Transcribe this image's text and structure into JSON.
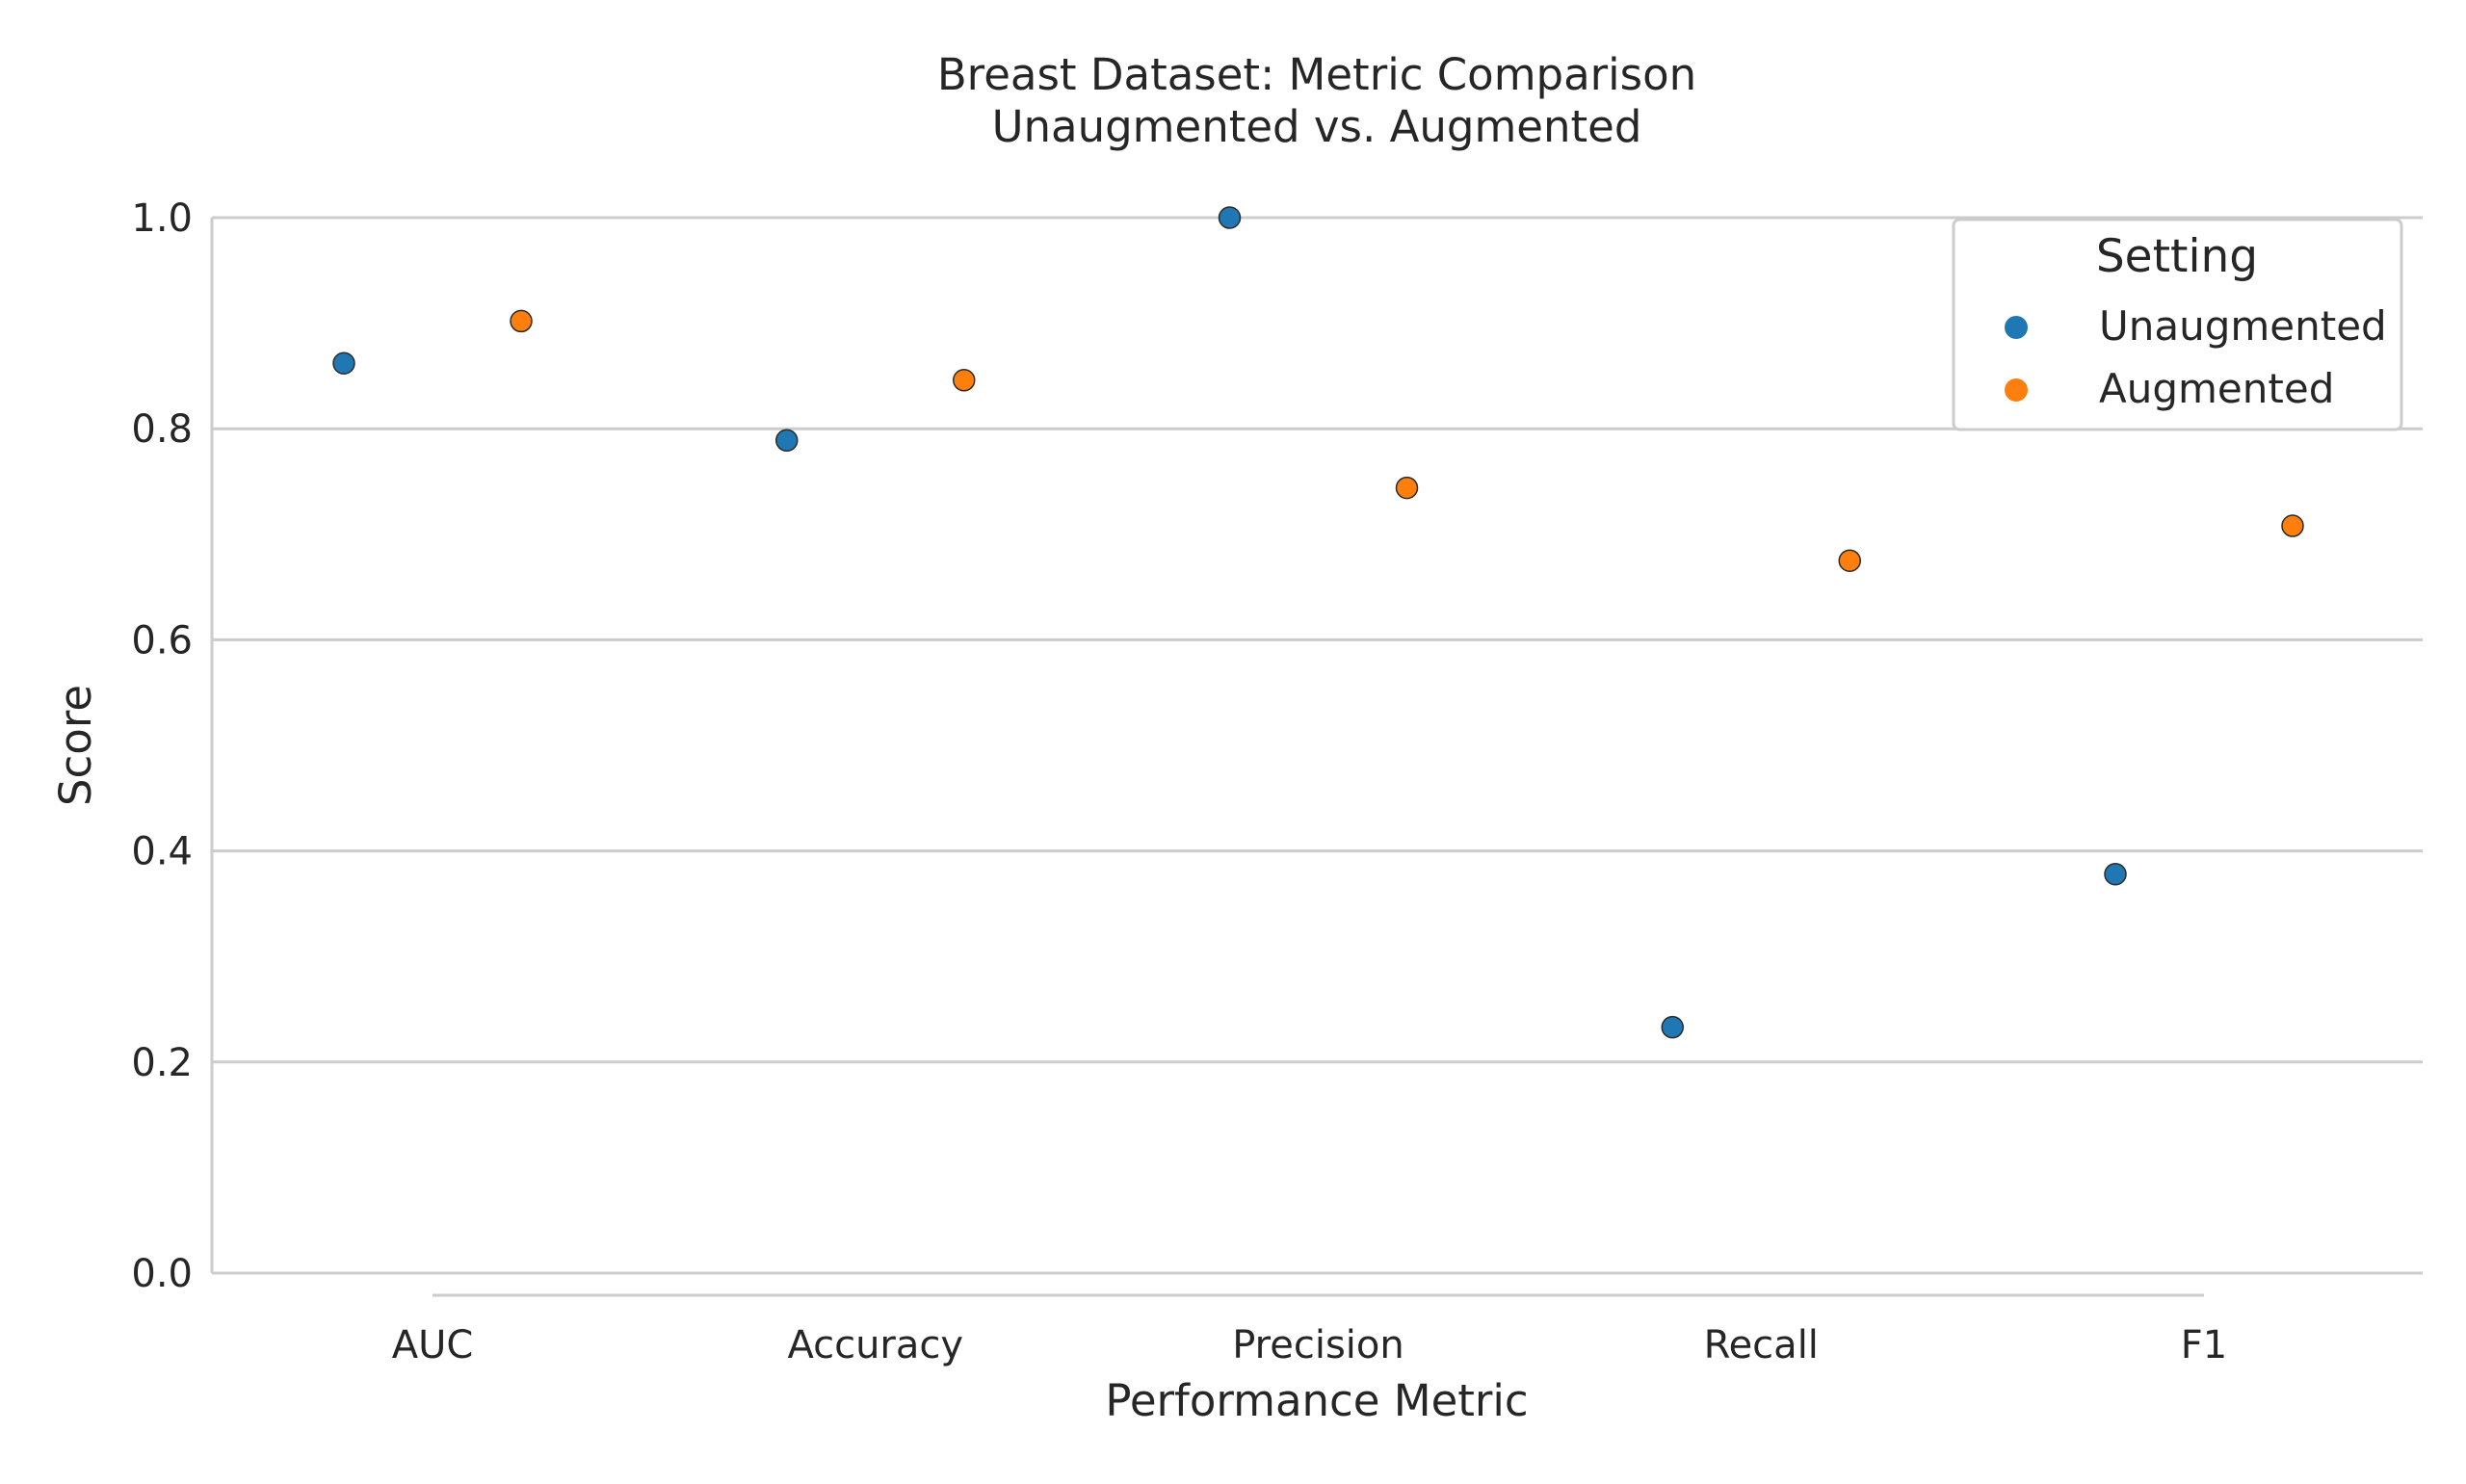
{
  "chart_data": {
    "type": "scatter",
    "title_line1": "Breast Dataset: Metric Comparison",
    "title_line2": "Unaugmented vs. Augmented",
    "xlabel": "Performance Metric",
    "ylabel": "Score",
    "categories": [
      "AUC",
      "Accuracy",
      "Precision",
      "Recall",
      "F1"
    ],
    "ylim": [
      0.0,
      1.0
    ],
    "yticks": [
      "0.0",
      "0.2",
      "0.4",
      "0.6",
      "0.8",
      "1.0"
    ],
    "grid": "horizontal",
    "legend": {
      "title": "Setting",
      "placement": "top-right"
    },
    "series": [
      {
        "name": "Unaugmented",
        "color": "#1f77b4",
        "values": [
          0.862,
          0.789,
          1.0,
          0.233,
          0.378
        ]
      },
      {
        "name": "Augmented",
        "color": "#ff7f0e",
        "values": [
          0.902,
          0.846,
          0.744,
          0.675,
          0.708
        ]
      }
    ]
  }
}
